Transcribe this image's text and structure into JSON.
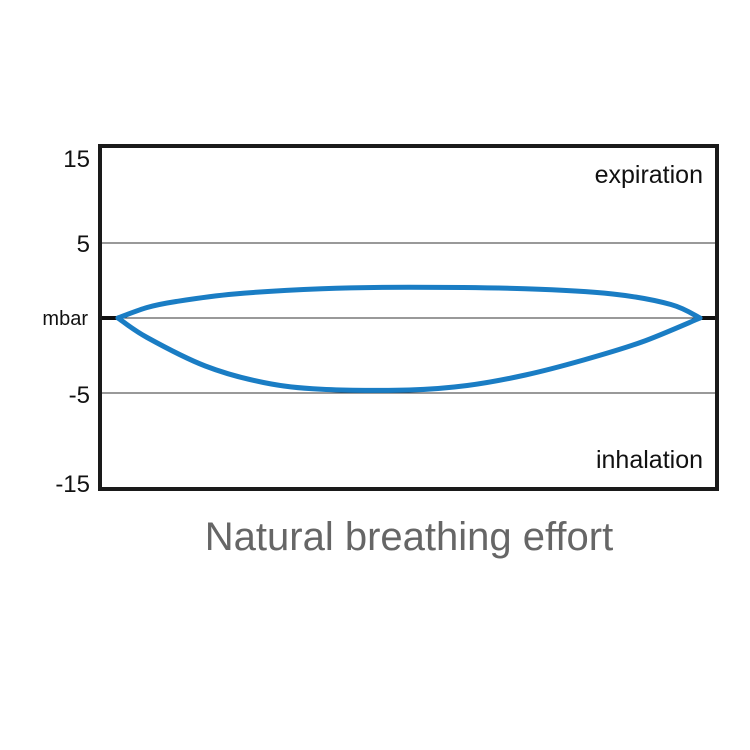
{
  "chart_data": {
    "type": "line",
    "title": "Natural breathing effort",
    "ylabel": "mbar",
    "y_ticks": [
      "15",
      "5",
      "-5",
      "-15"
    ],
    "ylim": [
      -15,
      15
    ],
    "grid": true,
    "annotations": {
      "top": "expiration",
      "bottom": "inhalation"
    },
    "color": "#1a7dc4",
    "series": [
      {
        "t": [
          0,
          0.05,
          0.1,
          0.2,
          0.35,
          0.5,
          0.7,
          0.85,
          0.95,
          1
        ],
        "values": [
          0,
          0.7,
          1.1,
          1.6,
          1.95,
          2.05,
          1.95,
          1.6,
          0.9,
          0
        ]
      },
      {
        "t": [
          0,
          0.05,
          0.15,
          0.25,
          0.35,
          0.5,
          0.6,
          0.7,
          0.8,
          0.9,
          1
        ],
        "values": [
          0,
          -1.3,
          -3.2,
          -4.3,
          -4.75,
          -4.8,
          -4.5,
          -3.8,
          -2.8,
          -1.6,
          0
        ]
      }
    ]
  }
}
